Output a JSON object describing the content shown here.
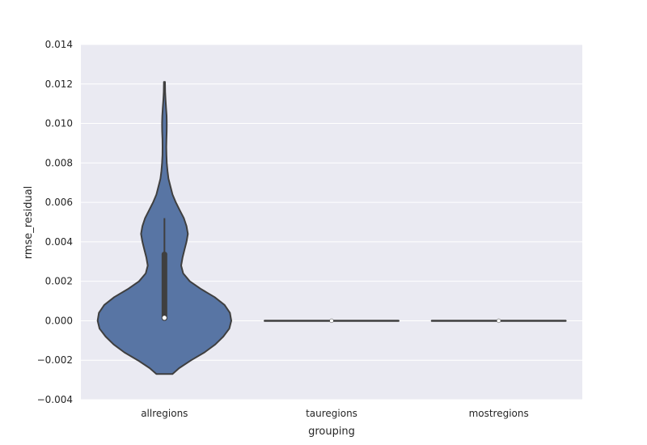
{
  "chart_data": {
    "type": "violin",
    "xlabel": "grouping",
    "ylabel": "rmse_residual",
    "categories": [
      "allregions",
      "tauregions",
      "mostregions"
    ],
    "ylim": [
      -0.004,
      0.014
    ],
    "yticks": [
      "0.014",
      "0.012",
      "0.010",
      "0.008",
      "0.006",
      "0.004",
      "0.002",
      "0.000",
      "−0.002",
      "−0.004"
    ],
    "ytick_values": [
      0.014,
      0.012,
      0.01,
      0.008,
      0.006,
      0.004,
      0.002,
      0.0,
      -0.002,
      -0.004
    ],
    "grid": true,
    "violins": [
      {
        "category": "allregions",
        "min": -0.0027,
        "max": 0.0121,
        "median": 0.00015,
        "q1": 0.0,
        "q3": 0.0035,
        "whisker_low": 0.0,
        "whisker_high": 0.0052,
        "density_profile": [
          [
            -0.0027,
            0.12
          ],
          [
            -0.0024,
            0.22
          ],
          [
            -0.002,
            0.4
          ],
          [
            -0.0016,
            0.6
          ],
          [
            -0.0012,
            0.76
          ],
          [
            -0.0008,
            0.88
          ],
          [
            -0.0004,
            0.97
          ],
          [
            0.0,
            1.0
          ],
          [
            0.0004,
            0.98
          ],
          [
            0.0008,
            0.9
          ],
          [
            0.0012,
            0.75
          ],
          [
            0.0016,
            0.55
          ],
          [
            0.002,
            0.38
          ],
          [
            0.0024,
            0.28
          ],
          [
            0.0028,
            0.25
          ],
          [
            0.0032,
            0.27
          ],
          [
            0.0036,
            0.3
          ],
          [
            0.004,
            0.33
          ],
          [
            0.0044,
            0.35
          ],
          [
            0.0048,
            0.33
          ],
          [
            0.0052,
            0.29
          ],
          [
            0.0056,
            0.23
          ],
          [
            0.006,
            0.17
          ],
          [
            0.0064,
            0.12
          ],
          [
            0.0068,
            0.09
          ],
          [
            0.0072,
            0.06
          ],
          [
            0.0076,
            0.045
          ],
          [
            0.008,
            0.035
          ],
          [
            0.0084,
            0.03
          ],
          [
            0.0088,
            0.028
          ],
          [
            0.0092,
            0.03
          ],
          [
            0.0096,
            0.034
          ],
          [
            0.01,
            0.035
          ],
          [
            0.0104,
            0.032
          ],
          [
            0.0108,
            0.024
          ],
          [
            0.0112,
            0.016
          ],
          [
            0.0116,
            0.01
          ],
          [
            0.0121,
            0.008
          ]
        ]
      },
      {
        "category": "tauregions",
        "min": 0.0,
        "max": 0.0,
        "median": 0.0
      },
      {
        "category": "mostregions",
        "min": 0.0,
        "max": 0.0,
        "median": 0.0
      }
    ],
    "colors": {
      "background": "#eaeaf2",
      "grid": "#ffffff",
      "violin_fill": "#5875a4",
      "edge": "#3f3f3f",
      "median": "#ffffff"
    }
  }
}
